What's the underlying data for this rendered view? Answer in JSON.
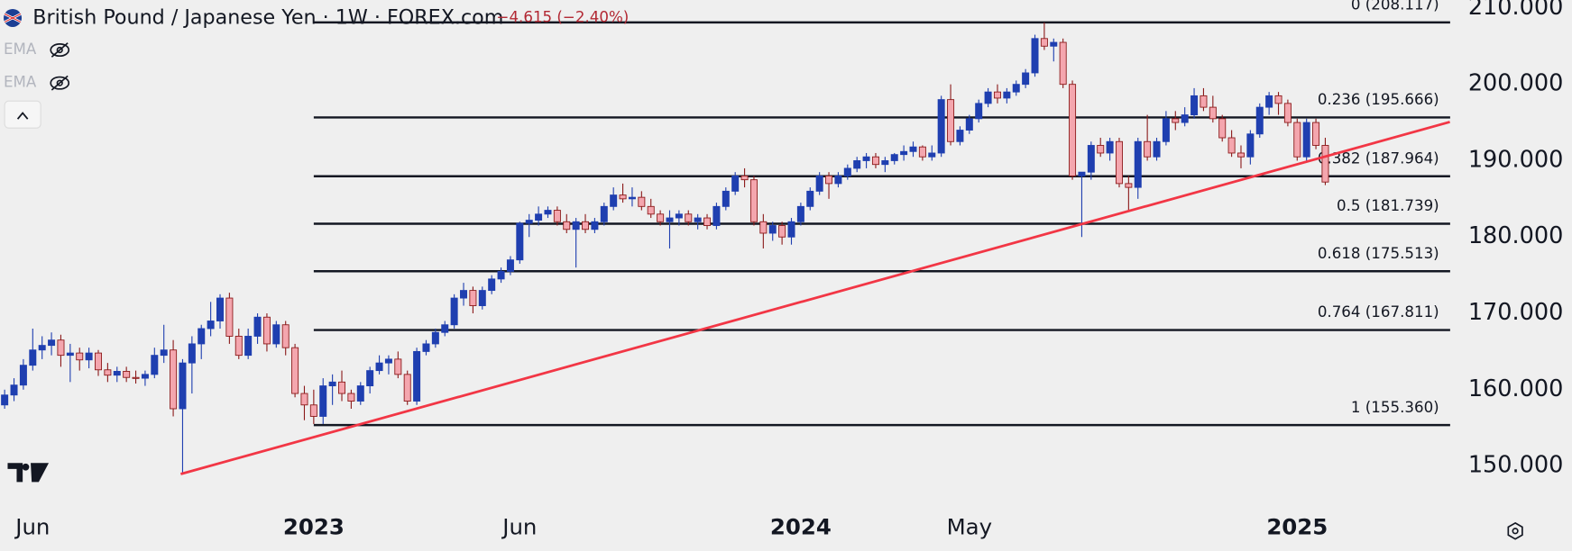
{
  "chart_data": {
    "type": "candlestick",
    "title": "British Pound / Japanese Yen · 1W · FOREX.com",
    "change": "−4.615 (−2.40%)",
    "indicators": [
      "EMA",
      "EMA"
    ],
    "up_color": "#1f3fb0",
    "down_color": "#f4a6ae",
    "down_border": "#8b1a1a",
    "xlim": [
      -0.43,
      154.65
    ],
    "ylim": [
      150,
      210
    ],
    "ylim_pad": [
      148.95,
      210.9
    ],
    "xticks": [
      {
        "value": 3,
        "label": "Jun"
      },
      {
        "value": 33,
        "label": "2023",
        "bold": true
      },
      {
        "value": 55,
        "label": "Jun"
      },
      {
        "value": 85,
        "label": "2024",
        "bold": true
      },
      {
        "value": 103,
        "label": "May"
      },
      {
        "value": 138,
        "label": "2025",
        "bold": true
      }
    ],
    "yticks": [
      {
        "value": 210,
        "label": "210.000"
      },
      {
        "value": 200,
        "label": "200.000"
      },
      {
        "value": 190,
        "label": "190.000"
      },
      {
        "value": 180,
        "label": "180.000"
      },
      {
        "value": 170,
        "label": "170.000"
      },
      {
        "value": 160,
        "label": "160.000"
      },
      {
        "value": 150,
        "label": "150.000"
      }
    ],
    "fib_start": 33,
    "fib_levels": [
      {
        "value": 208.117,
        "label": "0 (208.117)"
      },
      {
        "value": 195.666,
        "label": "0.236 (195.666)"
      },
      {
        "value": 187.964,
        "label": "0.382 (187.964)"
      },
      {
        "value": 181.739,
        "label": "0.5 (181.739)"
      },
      {
        "value": 175.513,
        "label": "0.618 (175.513)"
      },
      {
        "value": 167.811,
        "label": "0.764 (167.811)"
      },
      {
        "value": 155.36,
        "label": "1 (155.360)"
      }
    ],
    "trendline": {
      "x": [
        18.8,
        154.3
      ],
      "y": [
        148.95,
        195.07
      ],
      "color": "#f23645"
    },
    "ohlc": [
      [
        158,
        160,
        157.5,
        159.3
      ],
      [
        159.3,
        161.5,
        158.5,
        160.6
      ],
      [
        160.6,
        164,
        160,
        163.2
      ],
      [
        163.2,
        168,
        162.5,
        165.2
      ],
      [
        165.2,
        167,
        164,
        165.8
      ],
      [
        165.8,
        167.5,
        164.5,
        166.5
      ],
      [
        166.5,
        167.2,
        163,
        164.5
      ],
      [
        164.5,
        166,
        161,
        164.8
      ],
      [
        164.8,
        165.5,
        162.5,
        163.9
      ],
      [
        163.9,
        165.5,
        162.8,
        164.8
      ],
      [
        164.8,
        165.2,
        161.8,
        162.6
      ],
      [
        162.6,
        163.5,
        161,
        161.9
      ],
      [
        161.9,
        163,
        161,
        162.4
      ],
      [
        162.4,
        163,
        161,
        161.6
      ],
      [
        161.6,
        162.5,
        160.8,
        161.5
      ],
      [
        161.5,
        162.5,
        160.5,
        162
      ],
      [
        162,
        165.5,
        161.5,
        164.5
      ],
      [
        164.5,
        168.5,
        163.5,
        165.2
      ],
      [
        165.2,
        166.5,
        156.5,
        157.5
      ],
      [
        157.5,
        164,
        148.9,
        163.5
      ],
      [
        163.5,
        167,
        159.5,
        166
      ],
      [
        166,
        168.5,
        164,
        168
      ],
      [
        168,
        171.5,
        167,
        169
      ],
      [
        169,
        172.5,
        168,
        172
      ],
      [
        172,
        172.7,
        166,
        167
      ],
      [
        167,
        168,
        164,
        164.5
      ],
      [
        164.5,
        168,
        164,
        167
      ],
      [
        167,
        170,
        166,
        169.5
      ],
      [
        169.5,
        170,
        165,
        166
      ],
      [
        166,
        169,
        165.5,
        168.5
      ],
      [
        168.5,
        169,
        164.5,
        165.5
      ],
      [
        165.5,
        166,
        159,
        159.5
      ],
      [
        159.5,
        160.5,
        156,
        158
      ],
      [
        158,
        160,
        155.5,
        156.5
      ],
      [
        156.5,
        161.5,
        155.5,
        160.5
      ],
      [
        160.5,
        162,
        158,
        161
      ],
      [
        161,
        162.5,
        158.5,
        159.5
      ],
      [
        159.5,
        160,
        157.5,
        158.5
      ],
      [
        158.5,
        161,
        158,
        160.5
      ],
      [
        160.5,
        163,
        159.5,
        162.5
      ],
      [
        162.5,
        164.5,
        162,
        163.5
      ],
      [
        163.5,
        164.5,
        162,
        164
      ],
      [
        164,
        165,
        161.5,
        162
      ],
      [
        162,
        162.5,
        158,
        158.5
      ],
      [
        158.5,
        165.5,
        158,
        165
      ],
      [
        165,
        166.5,
        164.5,
        166
      ],
      [
        166,
        168,
        165.5,
        167.5
      ],
      [
        167.5,
        169,
        167,
        168.5
      ],
      [
        168.5,
        172.5,
        168,
        172
      ],
      [
        172,
        174,
        171,
        173
      ],
      [
        173,
        173.5,
        170,
        171
      ],
      [
        171,
        173.5,
        170.5,
        173
      ],
      [
        173,
        175,
        172.5,
        174.5
      ],
      [
        174.5,
        176,
        174,
        175.5
      ],
      [
        175.5,
        177.5,
        175,
        177
      ],
      [
        177,
        182,
        176.5,
        181.8
      ],
      [
        181.8,
        183,
        180,
        182.2
      ],
      [
        182.2,
        184,
        181.5,
        183
      ],
      [
        183,
        184,
        182.5,
        183.5
      ],
      [
        183.5,
        184,
        181.5,
        182
      ],
      [
        182,
        183,
        180.5,
        181
      ],
      [
        181,
        182.5,
        176,
        182
      ],
      [
        182,
        183,
        180.5,
        181
      ],
      [
        181,
        182.5,
        180.5,
        182
      ],
      [
        182,
        184.5,
        181.5,
        184
      ],
      [
        184,
        186.5,
        183.5,
        185.5
      ],
      [
        185.5,
        187,
        184.5,
        185
      ],
      [
        185,
        186.5,
        184,
        185.2
      ],
      [
        185.2,
        186,
        183.5,
        184
      ],
      [
        184,
        185,
        182.5,
        183
      ],
      [
        183,
        183.5,
        181.5,
        182
      ],
      [
        182,
        183.5,
        178.5,
        182.5
      ],
      [
        182.5,
        183.5,
        181.5,
        183
      ],
      [
        183,
        183.5,
        181.5,
        182
      ],
      [
        182,
        183,
        181,
        182.5
      ],
      [
        182.5,
        183,
        181,
        181.5
      ],
      [
        181.5,
        184.5,
        181,
        184
      ],
      [
        184,
        186.5,
        183.5,
        186
      ],
      [
        186,
        188.5,
        185.5,
        188
      ],
      [
        188,
        189,
        186.5,
        187.5
      ],
      [
        187.5,
        188,
        181.5,
        182
      ],
      [
        182,
        183,
        178.5,
        180.5
      ],
      [
        180.5,
        182,
        179.5,
        181.5
      ],
      [
        181.5,
        182,
        179,
        180
      ],
      [
        180,
        182.5,
        179,
        182
      ],
      [
        182,
        184.5,
        181.5,
        184
      ],
      [
        184,
        186.5,
        183.5,
        186
      ],
      [
        186,
        188.5,
        185.5,
        188
      ],
      [
        188,
        188.5,
        185,
        187
      ],
      [
        187,
        188.5,
        186.5,
        188
      ],
      [
        188,
        189.5,
        187.5,
        189
      ],
      [
        189,
        190.5,
        188.5,
        190
      ],
      [
        190,
        191,
        189,
        190.5
      ],
      [
        190.5,
        191,
        189,
        189.5
      ],
      [
        189.5,
        190.5,
        188.5,
        190
      ],
      [
        190,
        191,
        189.5,
        190.8
      ],
      [
        190.8,
        192,
        190,
        191.2
      ],
      [
        191.2,
        192.5,
        190.5,
        191.8
      ],
      [
        191.8,
        192,
        190,
        190.5
      ],
      [
        190.5,
        192,
        190,
        191
      ],
      [
        191,
        198.5,
        190.5,
        198
      ],
      [
        198,
        200,
        192,
        192.5
      ],
      [
        192.5,
        194.5,
        192,
        194
      ],
      [
        194,
        196,
        193.5,
        195.5
      ],
      [
        195.5,
        198,
        195,
        197.5
      ],
      [
        197.5,
        199.5,
        197,
        199
      ],
      [
        199,
        200,
        197.5,
        198.2
      ],
      [
        198.2,
        199.5,
        197.5,
        199
      ],
      [
        199,
        200.5,
        198.5,
        200
      ],
      [
        200,
        202,
        199.5,
        201.5
      ],
      [
        201.5,
        206.5,
        201,
        206
      ],
      [
        206,
        208.1,
        204.5,
        205
      ],
      [
        205,
        206,
        203,
        205.5
      ],
      [
        205.5,
        206,
        199.5,
        200
      ],
      [
        200,
        200.5,
        187.5,
        188
      ],
      [
        188,
        188.5,
        180,
        188.5
      ],
      [
        188.5,
        192.5,
        187.5,
        192
      ],
      [
        192,
        193,
        190.5,
        191
      ],
      [
        191,
        193,
        190,
        192.5
      ],
      [
        192.5,
        193,
        186.5,
        187
      ],
      [
        187,
        188,
        183.5,
        186.5
      ],
      [
        186.5,
        193,
        185,
        192.5
      ],
      [
        192.5,
        196,
        190,
        190.5
      ],
      [
        190.5,
        193,
        190,
        192.5
      ],
      [
        192.5,
        196.5,
        192,
        195.5
      ],
      [
        195.5,
        196.5,
        194,
        195
      ],
      [
        195,
        197,
        194.5,
        196
      ],
      [
        196,
        199.5,
        195.5,
        198.5
      ],
      [
        198.5,
        199.5,
        196.5,
        197
      ],
      [
        197,
        198.5,
        195,
        195.5
      ],
      [
        195.5,
        196,
        192.5,
        193
      ],
      [
        193,
        194,
        190.5,
        191
      ],
      [
        191,
        192,
        189,
        190.5
      ],
      [
        190.5,
        194,
        189.5,
        193.5
      ],
      [
        193.5,
        197.5,
        193,
        197
      ],
      [
        197,
        199,
        196,
        198.5
      ],
      [
        198.5,
        199,
        196,
        197.5
      ],
      [
        197.5,
        198,
        194.5,
        195
      ],
      [
        195,
        195.5,
        190,
        190.5
      ],
      [
        190.5,
        195.5,
        190,
        195
      ],
      [
        195,
        195.5,
        191.5,
        192
      ],
      [
        192,
        193,
        186.8,
        187.2
      ]
    ]
  }
}
